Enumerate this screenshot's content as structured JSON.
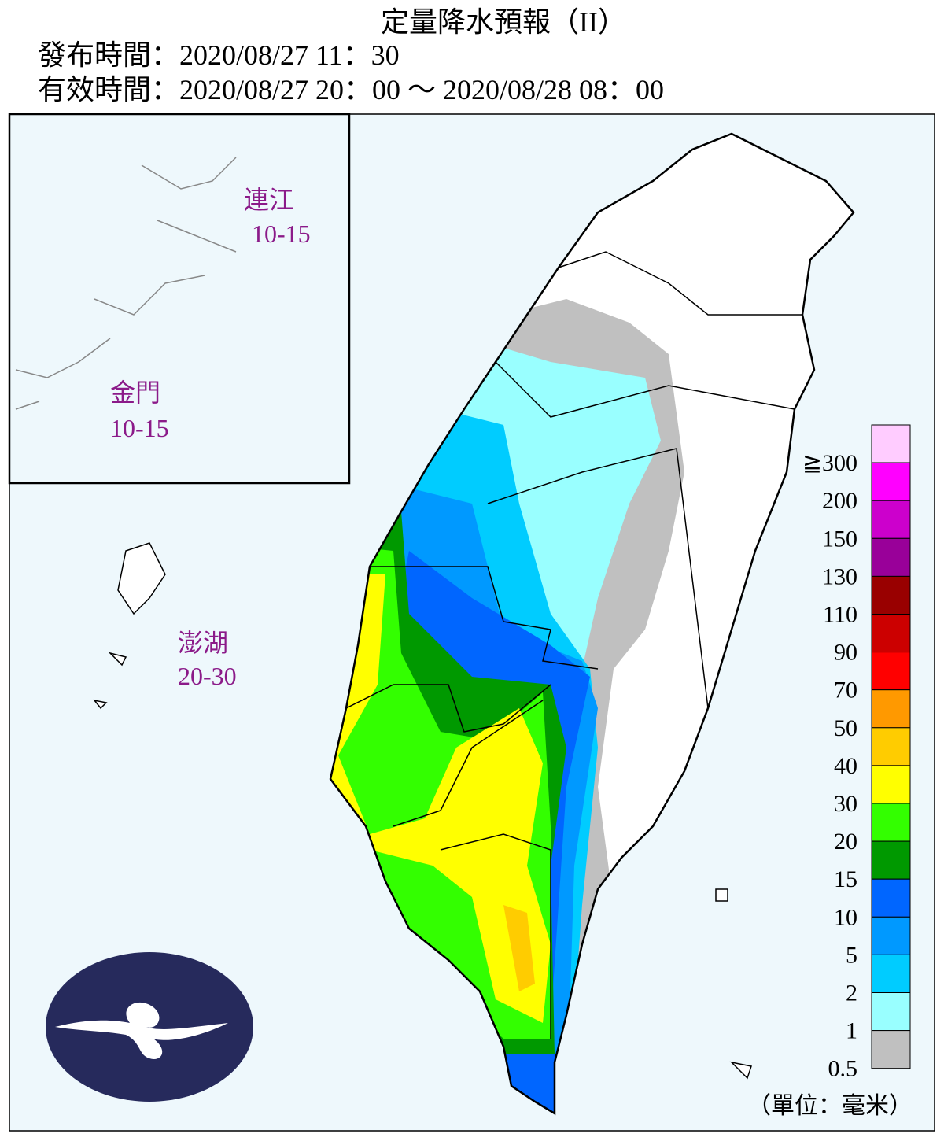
{
  "header": {
    "title": "定量降水預報（II）",
    "issue_time": "發布時間：2020/08/27 11：30",
    "valid_time": "有效時間：2020/08/27 20：00 ～ 2020/08/28 08：00"
  },
  "islands": [
    {
      "name": "連江",
      "range": "10-15"
    },
    {
      "name": "金門",
      "range": "10-15"
    },
    {
      "name": "澎湖",
      "range": "20-30"
    }
  ],
  "legend": {
    "items": [
      {
        "label": "≧300",
        "color": "#ffccff"
      },
      {
        "label": "200",
        "color": "#ff00ff"
      },
      {
        "label": "150",
        "color": "#cc00cc"
      },
      {
        "label": "130",
        "color": "#990099"
      },
      {
        "label": "110",
        "color": "#990000"
      },
      {
        "label": "90",
        "color": "#cc0000"
      },
      {
        "label": "70",
        "color": "#ff0000"
      },
      {
        "label": "50",
        "color": "#ff9900"
      },
      {
        "label": "40",
        "color": "#ffcc00"
      },
      {
        "label": "30",
        "color": "#ffff00"
      },
      {
        "label": "20",
        "color": "#33ff00"
      },
      {
        "label": "15",
        "color": "#009900"
      },
      {
        "label": "10",
        "color": "#0066ff"
      },
      {
        "label": "5",
        "color": "#0099ff"
      },
      {
        "label": "2",
        "color": "#00ccff"
      },
      {
        "label": "1",
        "color": "#99ffff"
      },
      {
        "label": "0.5",
        "color": "#c0c0c0"
      }
    ],
    "unit": "（單位：毫米）"
  }
}
